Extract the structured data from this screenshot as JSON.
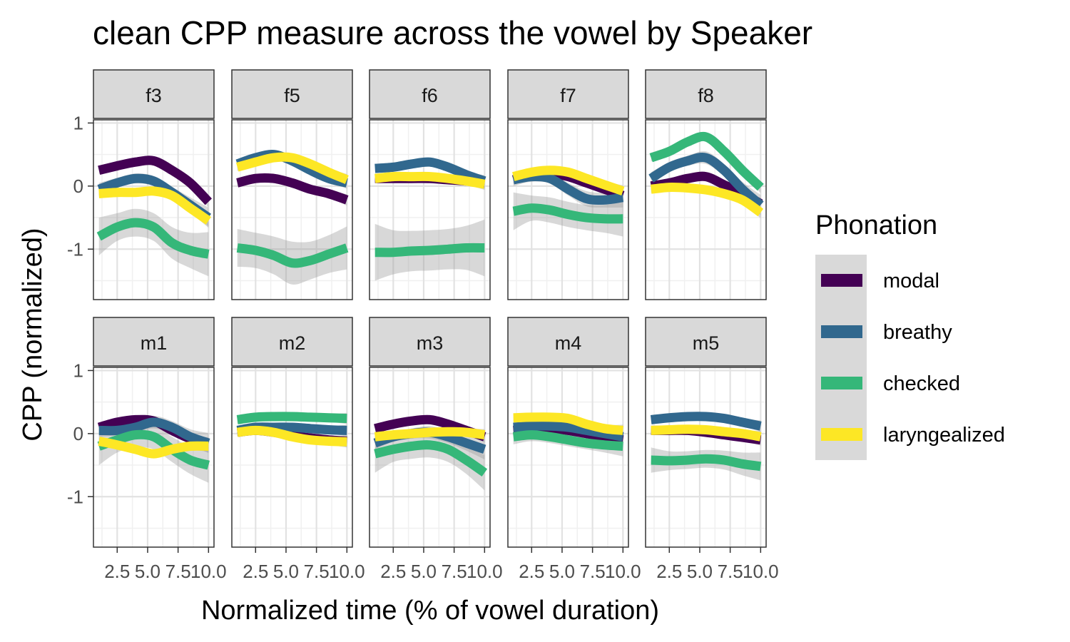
{
  "chart_data": {
    "type": "line",
    "title": "clean CPP measure across the vowel by Speaker",
    "xlabel": "Normalized time (% of vowel duration)",
    "ylabel": "CPP (normalized)",
    "xlim": [
      1.0,
      10.0
    ],
    "ylim": [
      -1.75,
      1.0
    ],
    "x_ticks": [
      2.5,
      5.0,
      7.5,
      10.0
    ],
    "x_tick_labels": [
      "2.5",
      "5.0",
      "7.5",
      "10.0"
    ],
    "y_ticks": [
      -1,
      0,
      1
    ],
    "y_tick_labels": [
      "-1",
      "0",
      "1"
    ],
    "grid": true,
    "legend": {
      "title": "Phonation",
      "position": "right",
      "entries": [
        "modal",
        "breathy",
        "checked",
        "laryngealized"
      ]
    },
    "colors": {
      "modal": "#440154",
      "breathy": "#31688e",
      "checked": "#35b779",
      "laryngealized": "#fde725"
    },
    "x": [
      1.0,
      2.5,
      4.0,
      5.5,
      7.0,
      8.5,
      10.0
    ],
    "panels": [
      {
        "label": "f3",
        "series": [
          {
            "name": "modal",
            "values": [
              0.25,
              0.32,
              0.38,
              0.4,
              0.25,
              0.05,
              -0.25
            ],
            "se": [
              0.06,
              0.05,
              0.05,
              0.05,
              0.05,
              0.06,
              0.09
            ]
          },
          {
            "name": "breathy",
            "values": [
              -0.05,
              0.05,
              0.12,
              0.08,
              -0.1,
              -0.3,
              -0.5
            ],
            "se": [
              0.1,
              0.08,
              0.08,
              0.08,
              0.09,
              0.12,
              0.16
            ]
          },
          {
            "name": "checked",
            "values": [
              -0.8,
              -0.65,
              -0.58,
              -0.65,
              -0.9,
              -1.02,
              -1.08
            ],
            "se": [
              0.3,
              0.22,
              0.22,
              0.22,
              0.25,
              0.28,
              0.35
            ]
          },
          {
            "name": "laryngealized",
            "values": [
              -0.12,
              -0.1,
              -0.1,
              -0.08,
              -0.15,
              -0.35,
              -0.55
            ],
            "se": [
              0.06,
              0.05,
              0.05,
              0.05,
              0.05,
              0.06,
              0.09
            ]
          }
        ]
      },
      {
        "label": "f5",
        "series": [
          {
            "name": "modal",
            "values": [
              0.05,
              0.12,
              0.12,
              0.05,
              -0.05,
              -0.12,
              -0.22
            ],
            "se": [
              0.06,
              0.05,
              0.05,
              0.05,
              0.05,
              0.06,
              0.09
            ]
          },
          {
            "name": "breathy",
            "values": [
              0.35,
              0.45,
              0.5,
              0.4,
              0.25,
              0.12,
              0.05
            ],
            "se": [
              0.06,
              0.05,
              0.05,
              0.05,
              0.05,
              0.06,
              0.09
            ]
          },
          {
            "name": "checked",
            "values": [
              -0.98,
              -1.02,
              -1.1,
              -1.22,
              -1.18,
              -1.08,
              -0.98
            ],
            "se": [
              0.3,
              0.28,
              0.3,
              0.34,
              0.3,
              0.3,
              0.34
            ]
          },
          {
            "name": "laryngealized",
            "values": [
              0.3,
              0.38,
              0.45,
              0.45,
              0.35,
              0.22,
              0.1
            ],
            "se": [
              0.06,
              0.05,
              0.05,
              0.05,
              0.05,
              0.06,
              0.09
            ]
          }
        ]
      },
      {
        "label": "f6",
        "series": [
          {
            "name": "modal",
            "values": [
              0.12,
              0.12,
              0.12,
              0.12,
              0.1,
              0.08,
              0.05
            ],
            "se": [
              0.06,
              0.05,
              0.05,
              0.05,
              0.05,
              0.06,
              0.09
            ]
          },
          {
            "name": "breathy",
            "values": [
              0.28,
              0.3,
              0.35,
              0.38,
              0.3,
              0.18,
              0.08
            ],
            "se": [
              0.06,
              0.05,
              0.05,
              0.05,
              0.05,
              0.06,
              0.09
            ]
          },
          {
            "name": "checked",
            "values": [
              -1.05,
              -1.05,
              -1.03,
              -1.02,
              -1.0,
              -0.98,
              -0.98
            ],
            "se": [
              0.45,
              0.35,
              0.32,
              0.32,
              0.32,
              0.35,
              0.45
            ]
          },
          {
            "name": "laryngealized",
            "values": [
              0.12,
              0.15,
              0.15,
              0.15,
              0.12,
              0.08,
              0.03
            ],
            "se": [
              0.06,
              0.05,
              0.05,
              0.05,
              0.05,
              0.06,
              0.09
            ]
          }
        ]
      },
      {
        "label": "f7",
        "series": [
          {
            "name": "modal",
            "values": [
              0.1,
              0.18,
              0.2,
              0.15,
              0.05,
              -0.05,
              -0.15
            ],
            "se": [
              0.06,
              0.05,
              0.05,
              0.05,
              0.05,
              0.06,
              0.09
            ]
          },
          {
            "name": "breathy",
            "values": [
              0.1,
              0.15,
              0.12,
              -0.05,
              -0.2,
              -0.22,
              -0.18
            ],
            "se": [
              0.1,
              0.08,
              0.08,
              0.1,
              0.12,
              0.12,
              0.16
            ]
          },
          {
            "name": "checked",
            "values": [
              -0.4,
              -0.35,
              -0.38,
              -0.45,
              -0.5,
              -0.52,
              -0.52
            ],
            "se": [
              0.3,
              0.2,
              0.2,
              0.2,
              0.2,
              0.22,
              0.28
            ]
          },
          {
            "name": "laryngealized",
            "values": [
              0.15,
              0.22,
              0.25,
              0.22,
              0.12,
              0.02,
              -0.08
            ],
            "se": [
              0.06,
              0.05,
              0.05,
              0.05,
              0.05,
              0.06,
              0.09
            ]
          }
        ]
      },
      {
        "label": "f8",
        "series": [
          {
            "name": "modal",
            "values": [
              0.0,
              0.05,
              0.12,
              0.15,
              0.02,
              -0.12,
              -0.28
            ],
            "se": [
              0.06,
              0.05,
              0.05,
              0.05,
              0.05,
              0.06,
              0.09
            ]
          },
          {
            "name": "breathy",
            "values": [
              0.12,
              0.3,
              0.4,
              0.45,
              0.25,
              -0.05,
              -0.3
            ],
            "se": [
              0.1,
              0.08,
              0.08,
              0.1,
              0.1,
              0.12,
              0.16
            ]
          },
          {
            "name": "checked",
            "values": [
              0.45,
              0.55,
              0.7,
              0.78,
              0.55,
              0.25,
              -0.02
            ],
            "se": [
              0.06,
              0.05,
              0.05,
              0.05,
              0.05,
              0.06,
              0.09
            ]
          },
          {
            "name": "laryngealized",
            "values": [
              -0.05,
              -0.02,
              -0.03,
              -0.06,
              -0.12,
              -0.22,
              -0.42
            ],
            "se": [
              0.06,
              0.05,
              0.05,
              0.05,
              0.05,
              0.06,
              0.09
            ]
          }
        ]
      },
      {
        "label": "m1",
        "series": [
          {
            "name": "modal",
            "values": [
              0.1,
              0.18,
              0.22,
              0.2,
              0.05,
              -0.08,
              -0.15
            ],
            "se": [
              0.06,
              0.05,
              0.05,
              0.05,
              0.05,
              0.06,
              0.09
            ]
          },
          {
            "name": "breathy",
            "values": [
              0.05,
              0.05,
              0.1,
              0.18,
              0.1,
              -0.05,
              -0.15
            ],
            "se": [
              0.1,
              0.08,
              0.08,
              0.1,
              0.1,
              0.12,
              0.16
            ]
          },
          {
            "name": "checked",
            "values": [
              -0.2,
              -0.1,
              -0.02,
              -0.05,
              -0.25,
              -0.42,
              -0.5
            ],
            "se": [
              0.3,
              0.2,
              0.2,
              0.2,
              0.2,
              0.22,
              0.28
            ]
          },
          {
            "name": "laryngealized",
            "values": [
              -0.12,
              -0.18,
              -0.25,
              -0.32,
              -0.25,
              -0.2,
              -0.2
            ],
            "se": [
              0.06,
              0.05,
              0.05,
              0.05,
              0.05,
              0.06,
              0.09
            ]
          }
        ]
      },
      {
        "label": "m2",
        "series": [
          {
            "name": "modal",
            "values": [
              0.02,
              0.05,
              0.02,
              -0.03,
              -0.07,
              -0.1,
              -0.12
            ],
            "se": [
              0.06,
              0.05,
              0.05,
              0.05,
              0.05,
              0.06,
              0.09
            ]
          },
          {
            "name": "breathy",
            "values": [
              0.05,
              0.1,
              0.1,
              0.1,
              0.08,
              0.06,
              0.05
            ],
            "se": [
              0.06,
              0.05,
              0.05,
              0.05,
              0.05,
              0.06,
              0.09
            ]
          },
          {
            "name": "checked",
            "values": [
              0.22,
              0.26,
              0.27,
              0.27,
              0.26,
              0.25,
              0.24
            ],
            "se": [
              0.06,
              0.05,
              0.05,
              0.05,
              0.05,
              0.06,
              0.09
            ]
          },
          {
            "name": "laryngealized",
            "values": [
              0.02,
              0.05,
              0.02,
              -0.05,
              -0.1,
              -0.12,
              -0.13
            ],
            "se": [
              0.06,
              0.05,
              0.05,
              0.05,
              0.05,
              0.06,
              0.09
            ]
          }
        ]
      },
      {
        "label": "m3",
        "series": [
          {
            "name": "modal",
            "values": [
              0.08,
              0.15,
              0.2,
              0.22,
              0.15,
              0.05,
              -0.05
            ],
            "se": [
              0.06,
              0.05,
              0.05,
              0.05,
              0.05,
              0.06,
              0.09
            ]
          },
          {
            "name": "breathy",
            "values": [
              -0.15,
              -0.05,
              0.0,
              0.02,
              -0.05,
              -0.15,
              -0.25
            ],
            "se": [
              0.1,
              0.08,
              0.08,
              0.1,
              0.1,
              0.12,
              0.16
            ]
          },
          {
            "name": "checked",
            "values": [
              -0.32,
              -0.25,
              -0.2,
              -0.18,
              -0.25,
              -0.42,
              -0.62
            ],
            "se": [
              0.3,
              0.2,
              0.2,
              0.2,
              0.2,
              0.22,
              0.28
            ]
          },
          {
            "name": "laryngealized",
            "values": [
              -0.05,
              -0.02,
              0.0,
              0.02,
              0.03,
              0.02,
              -0.02
            ],
            "se": [
              0.06,
              0.05,
              0.05,
              0.05,
              0.05,
              0.06,
              0.09
            ]
          }
        ]
      },
      {
        "label": "m4",
        "series": [
          {
            "name": "modal",
            "values": [
              0.05,
              0.08,
              0.08,
              0.05,
              0.0,
              -0.05,
              -0.1
            ],
            "se": [
              0.06,
              0.05,
              0.05,
              0.05,
              0.05,
              0.06,
              0.09
            ]
          },
          {
            "name": "breathy",
            "values": [
              0.1,
              0.12,
              0.12,
              0.1,
              0.05,
              0.0,
              -0.05
            ],
            "se": [
              0.06,
              0.05,
              0.05,
              0.05,
              0.05,
              0.06,
              0.09
            ]
          },
          {
            "name": "checked",
            "values": [
              -0.05,
              -0.02,
              -0.05,
              -0.1,
              -0.15,
              -0.18,
              -0.2
            ],
            "se": [
              0.12,
              0.1,
              0.1,
              0.1,
              0.1,
              0.12,
              0.16
            ]
          },
          {
            "name": "laryngealized",
            "values": [
              0.25,
              0.26,
              0.26,
              0.24,
              0.15,
              0.08,
              0.05
            ],
            "se": [
              0.06,
              0.05,
              0.05,
              0.05,
              0.05,
              0.06,
              0.09
            ]
          }
        ]
      },
      {
        "label": "m5",
        "series": [
          {
            "name": "modal",
            "values": [
              0.05,
              0.05,
              0.05,
              0.02,
              -0.02,
              -0.06,
              -0.1
            ],
            "se": [
              0.06,
              0.05,
              0.05,
              0.05,
              0.05,
              0.06,
              0.09
            ]
          },
          {
            "name": "breathy",
            "values": [
              0.22,
              0.25,
              0.27,
              0.27,
              0.24,
              0.18,
              0.12
            ],
            "se": [
              0.06,
              0.05,
              0.05,
              0.05,
              0.05,
              0.06,
              0.09
            ]
          },
          {
            "name": "checked",
            "values": [
              -0.42,
              -0.43,
              -0.42,
              -0.4,
              -0.42,
              -0.48,
              -0.52
            ],
            "se": [
              0.2,
              0.15,
              0.14,
              0.14,
              0.15,
              0.18,
              0.22
            ]
          },
          {
            "name": "laryngealized",
            "values": [
              0.05,
              0.06,
              0.07,
              0.06,
              0.03,
              0.0,
              -0.05
            ],
            "se": [
              0.06,
              0.05,
              0.05,
              0.05,
              0.05,
              0.06,
              0.09
            ]
          }
        ]
      }
    ]
  }
}
